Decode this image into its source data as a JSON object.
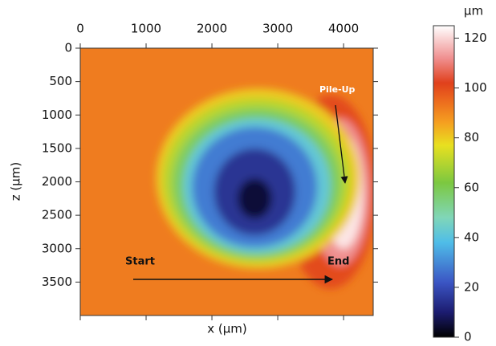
{
  "chart_data": {
    "type": "contour",
    "x_label": "x (µm)",
    "y_label": "z (µm)",
    "xlim": [
      0,
      4450
    ],
    "ylim": [
      0,
      4000
    ],
    "xticks": [
      0,
      1000,
      2000,
      3000,
      4000
    ],
    "yticks": [
      0,
      500,
      1000,
      1500,
      2000,
      2500,
      3000,
      3500
    ],
    "background_level": 92,
    "contours": [
      {
        "level": 100,
        "x": 3800,
        "z": 2150,
        "rx": 700,
        "rz": 1450
      },
      {
        "level": 112,
        "x": 3950,
        "z": 2150,
        "rx": 450,
        "rz": 1100
      },
      {
        "level": 122,
        "x": 4000,
        "z": 2150,
        "rx": 300,
        "rz": 850
      },
      {
        "level": 80,
        "x": 2700,
        "z": 1950,
        "rx": 1550,
        "rz": 1350
      },
      {
        "level": 70,
        "x": 2680,
        "z": 1980,
        "rx": 1420,
        "rz": 1230
      },
      {
        "level": 58,
        "x": 2680,
        "z": 2020,
        "rx": 1280,
        "rz": 1120
      },
      {
        "level": 42,
        "x": 2680,
        "z": 2060,
        "rx": 1120,
        "rz": 1010
      },
      {
        "level": 28,
        "x": 2650,
        "z": 2080,
        "rx": 950,
        "rz": 900
      },
      {
        "level": 15,
        "x": 2650,
        "z": 2150,
        "rx": 620,
        "rz": 650
      },
      {
        "level": 5,
        "x": 2650,
        "z": 2250,
        "rx": 260,
        "rz": 300
      }
    ],
    "colorbar": {
      "label": "µm",
      "ylim": [
        0,
        125
      ],
      "yticks": [
        0,
        20,
        40,
        60,
        80,
        100,
        120
      ],
      "colorscale": [
        {
          "value": 0,
          "color": "#000000"
        },
        {
          "value": 10,
          "color": "#1c1c70"
        },
        {
          "value": 22,
          "color": "#3b55c4"
        },
        {
          "value": 38,
          "color": "#4fbde8"
        },
        {
          "value": 48,
          "color": "#80d6b8"
        },
        {
          "value": 62,
          "color": "#7cc840"
        },
        {
          "value": 77,
          "color": "#e8e020"
        },
        {
          "value": 86,
          "color": "#f5a020"
        },
        {
          "value": 95,
          "color": "#ec6a1e"
        },
        {
          "value": 102,
          "color": "#e0401c"
        },
        {
          "value": 112,
          "color": "#f09090"
        },
        {
          "value": 125,
          "color": "#ffffff"
        }
      ]
    },
    "annotations": [
      "Pile-Up",
      "Start",
      "End"
    ]
  }
}
